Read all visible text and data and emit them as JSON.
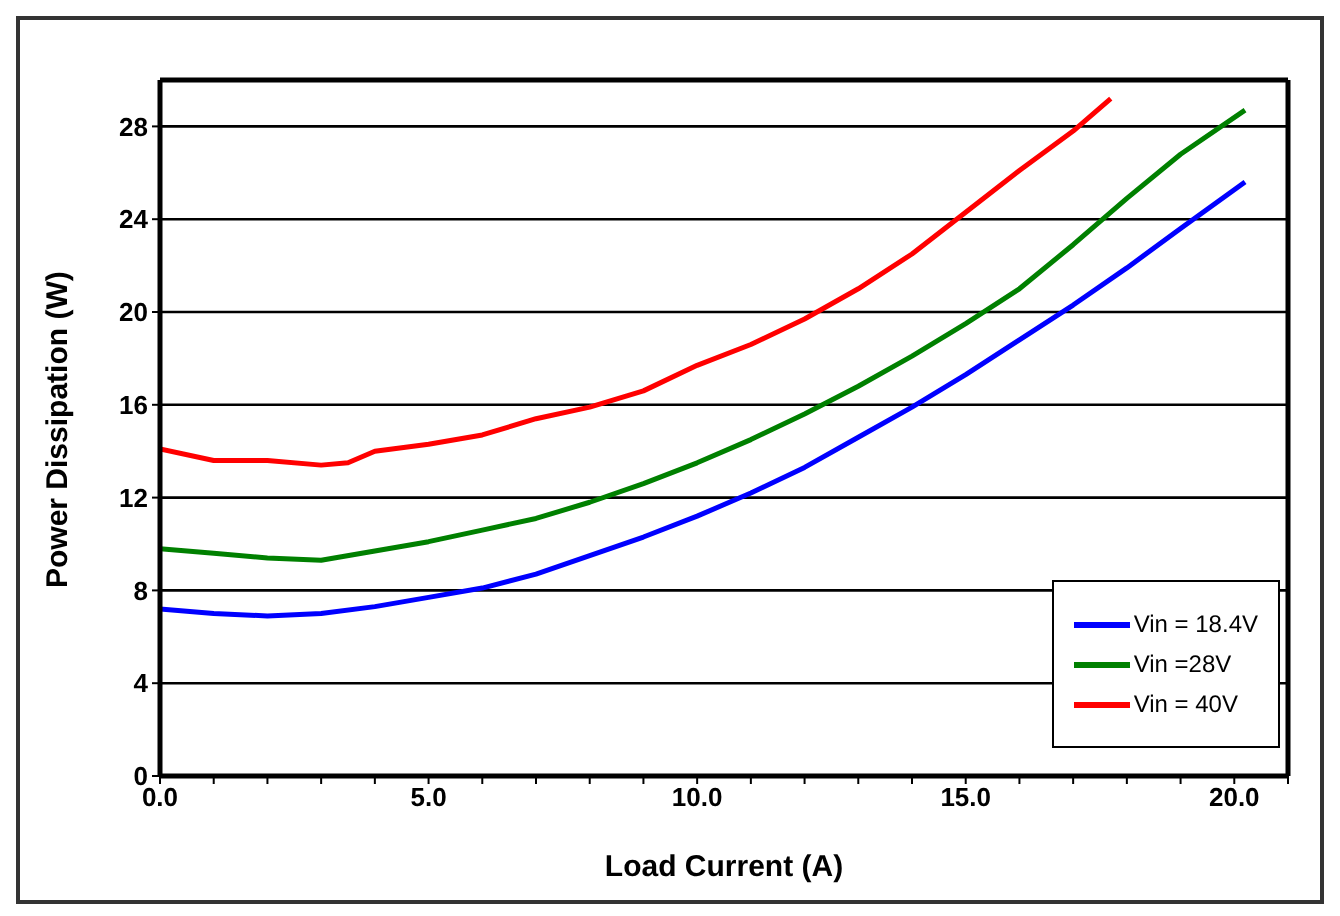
{
  "chart_data": {
    "type": "line",
    "xlabel": "Load Current (A)",
    "ylabel": "Power Dissipation (W)",
    "xlim": [
      0,
      21
    ],
    "ylim": [
      0,
      30
    ],
    "xticks": [
      {
        "value": 0,
        "label": "0.0"
      },
      {
        "value": 1,
        "label": null
      },
      {
        "value": 2,
        "label": null
      },
      {
        "value": 3,
        "label": null
      },
      {
        "value": 4,
        "label": null
      },
      {
        "value": 5,
        "label": "5.0"
      },
      {
        "value": 6,
        "label": null
      },
      {
        "value": 7,
        "label": null
      },
      {
        "value": 8,
        "label": null
      },
      {
        "value": 9,
        "label": null
      },
      {
        "value": 10,
        "label": "10.0"
      },
      {
        "value": 11,
        "label": null
      },
      {
        "value": 12,
        "label": null
      },
      {
        "value": 13,
        "label": null
      },
      {
        "value": 14,
        "label": null
      },
      {
        "value": 15,
        "label": "15.0"
      },
      {
        "value": 16,
        "label": null
      },
      {
        "value": 17,
        "label": null
      },
      {
        "value": 18,
        "label": null
      },
      {
        "value": 19,
        "label": null
      },
      {
        "value": 20,
        "label": "20.0"
      },
      {
        "value": 21,
        "label": null
      }
    ],
    "yticks": [
      0,
      4,
      8,
      12,
      16,
      20,
      24,
      28
    ],
    "grid": "y",
    "legend": "bottom right",
    "marker": "none",
    "line_style": "solid",
    "series": [
      {
        "name": "Vin =  18.4V",
        "color": "#0000ff",
        "x": [
          0,
          1,
          2,
          3,
          4,
          5,
          6,
          7,
          8,
          9,
          10,
          11,
          12,
          13,
          14,
          15,
          16,
          17,
          18,
          19,
          20.2
        ],
        "values": [
          7.2,
          7.0,
          6.9,
          7.0,
          7.3,
          7.7,
          8.1,
          8.7,
          9.5,
          10.3,
          11.2,
          12.2,
          13.3,
          14.6,
          15.9,
          17.3,
          18.8,
          20.3,
          21.9,
          23.6,
          25.6
        ]
      },
      {
        "name": "Vin =28V",
        "color": "#008000",
        "x": [
          0,
          1,
          2,
          3,
          4,
          5,
          6,
          7,
          8,
          9,
          10,
          11,
          12,
          13,
          14,
          15,
          16,
          17,
          18,
          19,
          20.2
        ],
        "values": [
          9.8,
          9.6,
          9.4,
          9.3,
          9.7,
          10.1,
          10.6,
          11.1,
          11.8,
          12.6,
          13.5,
          14.5,
          15.6,
          16.8,
          18.1,
          19.5,
          21,
          22.9,
          24.9,
          26.8,
          28.7
        ]
      },
      {
        "name": "Vin =  40V",
        "color": "#ff0000",
        "x": [
          0,
          1,
          2,
          3,
          3.5,
          4,
          5,
          6,
          7,
          8,
          9,
          10,
          11,
          12,
          13,
          14,
          15,
          16,
          17,
          17.7
        ],
        "values": [
          14.1,
          13.6,
          13.6,
          13.4,
          13.5,
          14,
          14.3,
          14.7,
          15.4,
          15.9,
          16.6,
          17.7,
          18.6,
          19.7,
          21,
          22.5,
          24.3,
          26.1,
          27.8,
          29.2
        ]
      }
    ]
  }
}
